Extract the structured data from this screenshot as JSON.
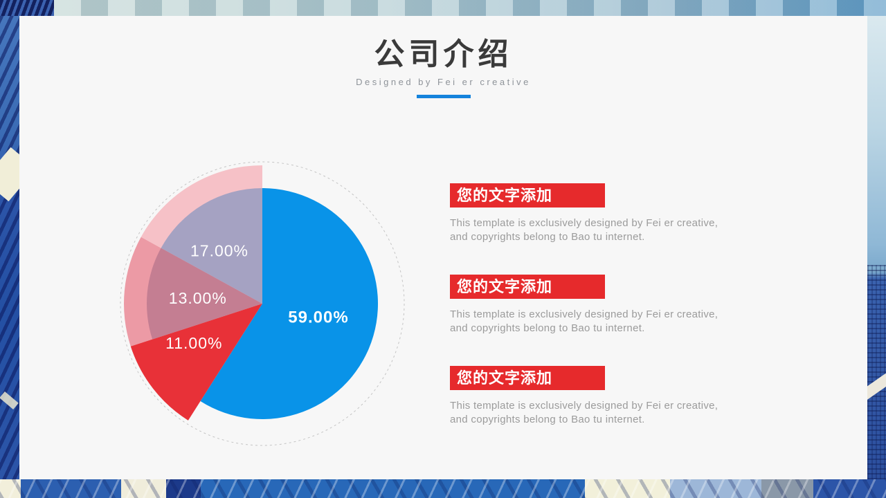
{
  "theme": {
    "accent_blue": "#1583DC",
    "heading_red": "#E62A2C",
    "card_bg": "#F7F7F7",
    "title_color": "#3A3A3A",
    "body_text_color": "#9B9B9B"
  },
  "header": {
    "title": "公司介绍",
    "subtitle": "Designed by Fei er creative"
  },
  "chart_data": {
    "type": "pie",
    "unit": "percent",
    "start_angle_deg": 0,
    "direction": "clockwise",
    "legend_position": "none",
    "halo_radius": 200,
    "label_color": "#FFFFFF",
    "dashed_ring": {
      "radius": 205,
      "color": "#C4C4C4"
    },
    "slices": [
      {
        "label": "59.00%",
        "value": 59,
        "color": "#0993E8",
        "radius": 167,
        "bold": true,
        "label_angle": 104,
        "label_r": 0.5
      },
      {
        "label": "11.00%",
        "value": 11,
        "color": "#E83138",
        "radius": 200,
        "bold": false,
        "label_angle": 240,
        "label_r": 0.57
      },
      {
        "label": "13.00%",
        "value": 13,
        "color": "#C47E92",
        "radius": 167,
        "bold": false,
        "halo_color": "#EC9AA5",
        "label_angle": 275,
        "label_r": 0.56
      },
      {
        "label": "17.00%",
        "value": 17,
        "color": "#A5A2C2",
        "radius": 167,
        "bold": false,
        "halo_color": "#F6C1C7",
        "label_angle": 321,
        "label_r": 0.59
      }
    ]
  },
  "text_blocks": [
    {
      "heading": "您的文字添加",
      "body_lines": [
        "This template is exclusively designed by Fei er creative,",
        "and copyrights belong to Bao tu internet."
      ]
    },
    {
      "heading": "您的文字添加",
      "body_lines": [
        "This template is exclusively designed by Fei er creative,",
        "and copyrights belong to Bao tu internet."
      ]
    },
    {
      "heading": "您的文字添加",
      "body_lines": [
        "This template is exclusively designed by Fei er creative,",
        "and copyrights belong to Bao tu internet."
      ]
    }
  ]
}
